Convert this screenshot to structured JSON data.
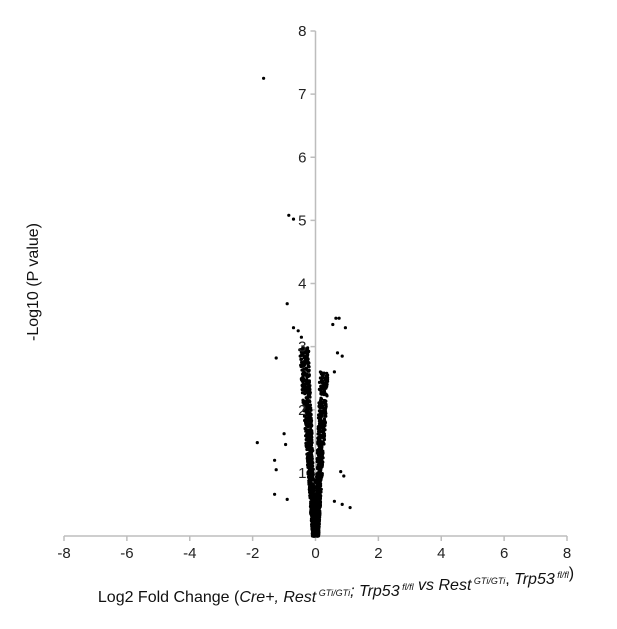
{
  "chart_data": {
    "type": "scatter",
    "title": "",
    "xlabel": {
      "parts": [
        {
          "text": "Log2 Fold Change (",
          "style": "normal"
        },
        {
          "text": "Cre+, Rest",
          "style": "italic"
        },
        {
          "text": " GTi/GTi",
          "style": "super"
        },
        {
          "text": "; ",
          "style": "italic"
        },
        {
          "text": "Trp53",
          "style": "italic"
        },
        {
          "text": " fl/fl",
          "style": "super"
        },
        {
          "text": " vs ",
          "style": "italic"
        },
        {
          "text": "Rest",
          "style": "italic"
        },
        {
          "text": " GTi/GTi",
          "style": "super"
        },
        {
          "text": ", ",
          "style": "normal"
        },
        {
          "text": "Trp53",
          "style": "italic"
        },
        {
          "text": " fl/fl",
          "style": "super"
        },
        {
          "text": ")",
          "style": "normal"
        }
      ]
    },
    "ylabel": "-Log10 (P value)",
    "xlim": [
      -8,
      8
    ],
    "ylim": [
      0,
      8
    ],
    "x_ticks": [
      "-8",
      "-6",
      "-4",
      "-2",
      "0",
      "2",
      "4",
      "6",
      "8"
    ],
    "y_ticks": [
      "1",
      "2",
      "3",
      "4",
      "5",
      "6",
      "7",
      "8"
    ],
    "grid": false,
    "legend": "none",
    "point_color": "#000000",
    "points": [
      [
        -1.65,
        7.25
      ],
      [
        -0.85,
        5.08
      ],
      [
        -0.7,
        5.02
      ],
      [
        -0.9,
        3.68
      ],
      [
        -0.7,
        3.3
      ],
      [
        -0.55,
        3.25
      ],
      [
        -1.25,
        2.82
      ],
      [
        -0.5,
        2.95
      ],
      [
        -0.45,
        3.15
      ],
      [
        -1.85,
        1.48
      ],
      [
        -1.3,
        1.2
      ],
      [
        -1.25,
        1.05
      ],
      [
        -1.3,
        0.66
      ],
      [
        -0.9,
        0.58
      ],
      [
        -1.0,
        1.62
      ],
      [
        -0.95,
        1.45
      ],
      [
        0.55,
        3.35
      ],
      [
        0.65,
        3.45
      ],
      [
        0.75,
        3.45
      ],
      [
        0.95,
        3.3
      ],
      [
        0.7,
        2.9
      ],
      [
        0.85,
        2.85
      ],
      [
        0.6,
        2.6
      ],
      [
        0.8,
        1.02
      ],
      [
        0.9,
        0.95
      ],
      [
        1.1,
        0.45
      ],
      [
        0.85,
        0.5
      ],
      [
        0.6,
        0.55
      ]
    ],
    "generated_cloud": {
      "count": 1400,
      "left_arm": {
        "x_range": [
          -1.0,
          -0.05
        ],
        "y_max": 3.0
      },
      "right_arm": {
        "x_range": [
          0.05,
          0.8
        ],
        "y_max": 2.6
      }
    }
  }
}
